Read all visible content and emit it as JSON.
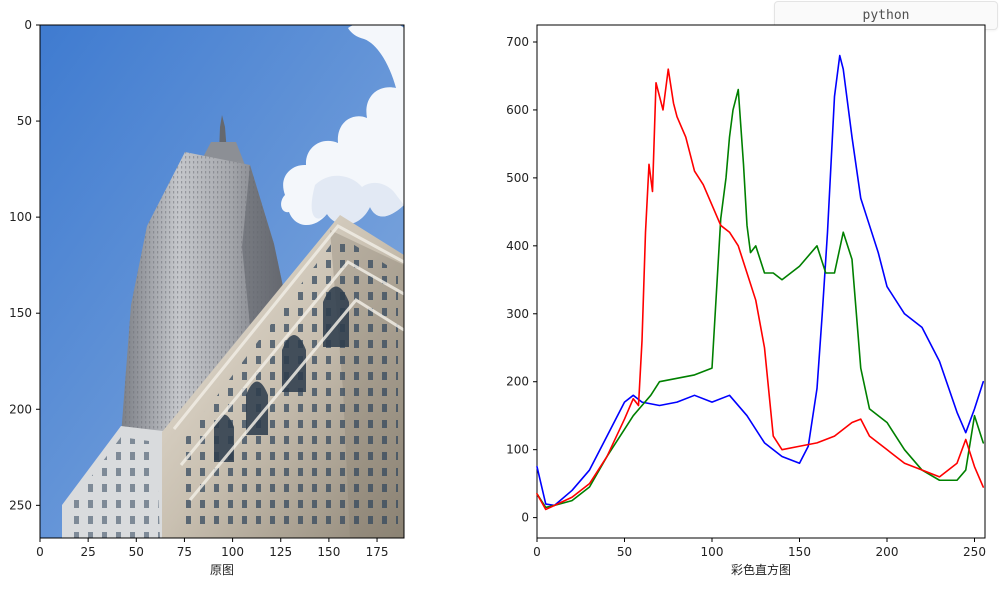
{
  "badge": {
    "language": "python"
  },
  "image_panel": {
    "xlabel": "原图",
    "x_ticks": [
      0,
      25,
      50,
      75,
      100,
      125,
      150,
      175
    ],
    "y_ticks": [
      0,
      50,
      100,
      150,
      200,
      250
    ],
    "xlim": [
      0,
      189
    ],
    "ylim": [
      0,
      267
    ]
  },
  "colors": {
    "sky_top": "#3f7bd0",
    "sky_bottom": "#89aedf",
    "cloud": "#f4f7fb",
    "tower_light": "#b9bbc0",
    "tower_dark": "#6d7078",
    "building_light": "#ddd6c8",
    "building_dark": "#8e8576",
    "window": "#31465c",
    "line_blue": "#0000ff",
    "line_green": "#008000",
    "line_red": "#ff0000",
    "axis": "#000000"
  },
  "chart_data": [
    {
      "type": "line",
      "xlabel": "彩色直方图",
      "x_ticks": [
        0,
        50,
        100,
        150,
        200,
        250
      ],
      "y_ticks": [
        0,
        100,
        200,
        300,
        400,
        500,
        600,
        700
      ],
      "xlim": [
        0,
        256
      ],
      "ylim": [
        -30,
        725
      ],
      "grid": false,
      "series": [
        {
          "color": "#0000ff",
          "x": [
            0,
            5,
            10,
            20,
            30,
            40,
            50,
            55,
            60,
            70,
            80,
            90,
            100,
            110,
            120,
            130,
            140,
            150,
            155,
            160,
            163,
            166,
            170,
            173,
            175,
            180,
            185,
            190,
            195,
            200,
            210,
            220,
            230,
            240,
            245,
            250,
            255
          ],
          "values": [
            75,
            20,
            18,
            40,
            70,
            120,
            170,
            180,
            170,
            165,
            170,
            180,
            170,
            180,
            150,
            110,
            90,
            80,
            105,
            190,
            300,
            420,
            620,
            680,
            660,
            560,
            470,
            430,
            390,
            340,
            300,
            280,
            230,
            155,
            125,
            160,
            200
          ]
        },
        {
          "color": "#008000",
          "x": [
            0,
            5,
            10,
            20,
            30,
            40,
            50,
            55,
            60,
            65,
            70,
            80,
            90,
            100,
            105,
            108,
            110,
            112,
            115,
            118,
            120,
            122,
            125,
            130,
            135,
            140,
            150,
            160,
            165,
            170,
            175,
            180,
            185,
            190,
            200,
            210,
            220,
            230,
            240,
            245,
            250,
            255
          ],
          "values": [
            35,
            15,
            18,
            25,
            45,
            90,
            130,
            150,
            165,
            180,
            200,
            205,
            210,
            220,
            440,
            500,
            560,
            600,
            630,
            520,
            430,
            390,
            400,
            360,
            360,
            350,
            370,
            400,
            360,
            360,
            420,
            380,
            220,
            160,
            140,
            100,
            70,
            55,
            55,
            70,
            150,
            110
          ]
        },
        {
          "color": "#ff0000",
          "x": [
            0,
            5,
            10,
            20,
            30,
            40,
            50,
            55,
            58,
            60,
            62,
            64,
            66,
            68,
            70,
            72,
            75,
            78,
            80,
            85,
            90,
            95,
            100,
            105,
            110,
            115,
            120,
            125,
            130,
            135,
            140,
            150,
            160,
            170,
            180,
            185,
            190,
            200,
            210,
            220,
            230,
            240,
            245,
            250,
            255
          ],
          "values": [
            35,
            12,
            18,
            30,
            50,
            90,
            145,
            175,
            165,
            260,
            420,
            520,
            480,
            640,
            620,
            600,
            660,
            610,
            590,
            560,
            510,
            490,
            460,
            430,
            420,
            400,
            360,
            320,
            250,
            120,
            100,
            105,
            110,
            120,
            140,
            145,
            120,
            100,
            80,
            70,
            60,
            80,
            115,
            75,
            45
          ]
        }
      ]
    }
  ]
}
